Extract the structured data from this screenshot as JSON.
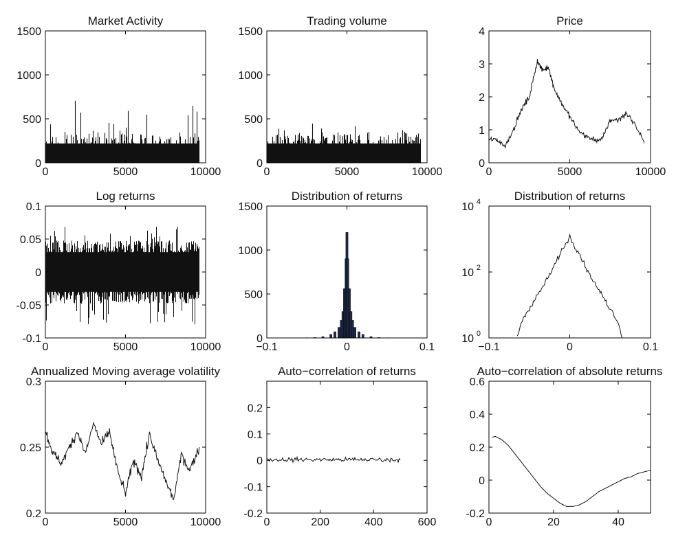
{
  "chart_data": [
    {
      "type": "bar",
      "title": "Market Activity",
      "xlim": [
        0,
        10000
      ],
      "ylim": [
        0,
        1500
      ],
      "xticks": [
        "0",
        "5000",
        "10000"
      ],
      "yticks": [
        "0",
        "500",
        "1000",
        "1500"
      ],
      "x_extent": 9600,
      "typical_values": [
        0,
        300
      ],
      "peak_values": [
        700,
        780
      ]
    },
    {
      "type": "bar",
      "title": "Trading volume",
      "xlim": [
        0,
        10000
      ],
      "ylim": [
        0,
        1500
      ],
      "xticks": [
        "0",
        "5000",
        "10000"
      ],
      "yticks": [
        "0",
        "500",
        "1000",
        "1500"
      ],
      "x_extent": 9600,
      "typical_values": [
        0,
        300
      ],
      "peak_values": [
        450,
        500
      ]
    },
    {
      "type": "line",
      "title": "Price",
      "xlim": [
        0,
        10000
      ],
      "ylim": [
        0,
        4
      ],
      "xticks": [
        "0",
        "5000",
        "10000"
      ],
      "yticks": [
        "0",
        "1",
        "2",
        "3",
        "4"
      ],
      "x": [
        0,
        500,
        1000,
        1500,
        2000,
        2500,
        3000,
        3300,
        3700,
        4000,
        4500,
        5000,
        5500,
        6000,
        6500,
        7000,
        7500,
        8000,
        8500,
        9000,
        9600
      ],
      "y": [
        0.7,
        0.7,
        0.5,
        1.0,
        1.6,
        2.0,
        3.1,
        2.8,
        2.9,
        2.3,
        1.8,
        1.4,
        1.0,
        0.8,
        0.7,
        0.7,
        1.3,
        1.3,
        1.5,
        1.2,
        0.6
      ]
    },
    {
      "type": "line",
      "title": "Log returns",
      "xlim": [
        0,
        10000
      ],
      "ylim": [
        -0.1,
        0.1
      ],
      "xticks": [
        "0",
        "5000",
        "10000"
      ],
      "yticks": [
        "-0.1",
        "-0.05",
        "0",
        "0.05",
        "0.1"
      ],
      "x_extent": 9600,
      "band": [
        -0.04,
        0.04
      ],
      "extremes": [
        -0.08,
        0.07
      ]
    },
    {
      "type": "bar",
      "title": "Distribution of  returns",
      "xlim": [
        -0.1,
        0.1
      ],
      "ylim": [
        0,
        1500
      ],
      "xticks": [
        "−0.1",
        "0",
        "0.1"
      ],
      "yticks": [
        "0",
        "500",
        "1000",
        "1500"
      ],
      "x": [
        -0.05,
        -0.04,
        -0.03,
        -0.02,
        -0.015,
        -0.01,
        -0.007,
        -0.005,
        -0.003,
        -0.001,
        0.0,
        0.001,
        0.003,
        0.005,
        0.007,
        0.01,
        0.015,
        0.02,
        0.03,
        0.04,
        0.05
      ],
      "values": [
        2,
        5,
        15,
        40,
        70,
        120,
        200,
        300,
        560,
        900,
        1200,
        900,
        560,
        300,
        200,
        120,
        70,
        40,
        15,
        5,
        2
      ]
    },
    {
      "type": "line",
      "title": "Distribution of  returns",
      "xlim": [
        -0.1,
        0.1
      ],
      "ylim": [
        1,
        10000
      ],
      "yscale": "log",
      "xticks": [
        "−0.1",
        "0",
        "0.1"
      ],
      "yticks": [
        {
          "base": "10",
          "exp": "0"
        },
        {
          "base": "10",
          "exp": "2"
        },
        {
          "base": "10",
          "exp": "4"
        }
      ],
      "x": [
        -0.065,
        -0.06,
        -0.055,
        -0.05,
        -0.045,
        -0.04,
        -0.035,
        -0.03,
        -0.025,
        -0.02,
        -0.015,
        -0.01,
        -0.005,
        0.0,
        0.005,
        0.01,
        0.015,
        0.02,
        0.025,
        0.03,
        0.035,
        0.04,
        0.045,
        0.05,
        0.055,
        0.06,
        0.065
      ],
      "y": [
        1,
        3,
        5,
        8,
        12,
        20,
        30,
        50,
        80,
        140,
        250,
        450,
        700,
        1200,
        700,
        450,
        250,
        140,
        80,
        50,
        30,
        20,
        12,
        8,
        5,
        3,
        1
      ]
    },
    {
      "type": "line",
      "title": "Annualized Moving average volatility",
      "xlim": [
        0,
        10000
      ],
      "ylim": [
        0.2,
        0.3
      ],
      "xticks": [
        "0",
        "5000",
        "10000"
      ],
      "yticks": [
        "0.2",
        "0.25",
        "0.3"
      ],
      "x": [
        0,
        500,
        1000,
        1500,
        2000,
        2500,
        3000,
        3500,
        4000,
        4500,
        5000,
        5500,
        6000,
        6500,
        7000,
        7500,
        8000,
        8500,
        9000,
        9600
      ],
      "y": [
        0.262,
        0.245,
        0.238,
        0.25,
        0.262,
        0.245,
        0.268,
        0.252,
        0.262,
        0.232,
        0.215,
        0.24,
        0.228,
        0.26,
        0.24,
        0.225,
        0.21,
        0.245,
        0.232,
        0.25
      ]
    },
    {
      "type": "line",
      "title": "Auto−correlation of  returns",
      "xlim": [
        0,
        600
      ],
      "ylim": [
        -0.2,
        0.3
      ],
      "xticks": [
        "0",
        "200",
        "400",
        "600"
      ],
      "yticks": [
        "-0.2",
        "-0.1",
        "0",
        "0.1",
        "0.2"
      ],
      "x_extent": 500,
      "band": [
        -0.015,
        0.02
      ]
    },
    {
      "type": "line",
      "title": "Auto−correlation of  absolute returns",
      "xlim": [
        0,
        50
      ],
      "ylim": [
        -0.2,
        0.6
      ],
      "xticks": [
        "0",
        "20",
        "40"
      ],
      "yticks": [
        "-0.2",
        "0",
        "0.2",
        "0.4",
        "0.6"
      ],
      "x": [
        1,
        2,
        4,
        6,
        8,
        10,
        12,
        14,
        16,
        18,
        20,
        22,
        24,
        26,
        28,
        30,
        32,
        34,
        36,
        38,
        40,
        42,
        44,
        46,
        48,
        50
      ],
      "y": [
        0.26,
        0.265,
        0.245,
        0.21,
        0.16,
        0.11,
        0.06,
        0.01,
        -0.04,
        -0.08,
        -0.11,
        -0.14,
        -0.16,
        -0.16,
        -0.15,
        -0.13,
        -0.1,
        -0.07,
        -0.05,
        -0.03,
        -0.01,
        0.01,
        0.02,
        0.04,
        0.05,
        0.06
      ]
    }
  ]
}
